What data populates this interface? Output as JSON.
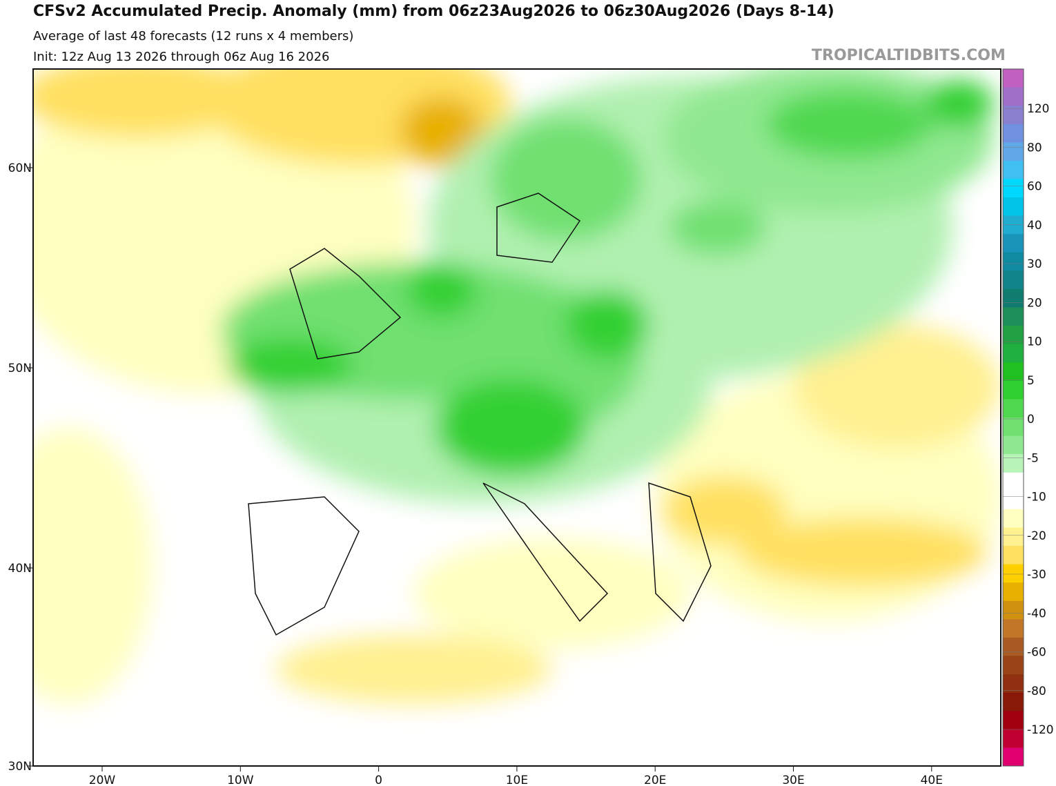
{
  "header": {
    "title": "CFSv2 Accumulated Precip. Anomaly (mm) from 06z23Aug2026 to 06z30Aug2026 (Days 8-14)",
    "subtitle": "Average of last 48 forecasts (12 runs x 4 members)",
    "init": "Init: 12z Aug 13 2026 through 06z Aug 16 2026",
    "watermark": "TROPICALTIDBITS.COM"
  },
  "map": {
    "lat_labels": [
      "60N",
      "50N",
      "40N",
      "30N"
    ],
    "lon_labels": [
      "20W",
      "10W",
      "0",
      "10E",
      "20E",
      "30E",
      "40E"
    ]
  },
  "colorbar": {
    "labels": [
      "120",
      "80",
      "60",
      "40",
      "30",
      "20",
      "10",
      "5",
      "0",
      "-5",
      "-10",
      "-20",
      "-30",
      "-40",
      "-60",
      "-80",
      "-120"
    ]
  }
}
